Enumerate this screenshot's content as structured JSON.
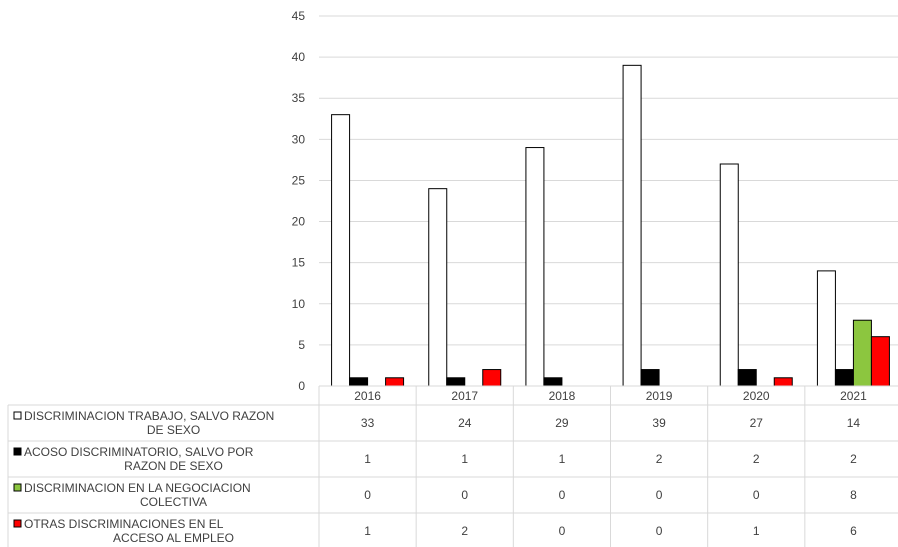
{
  "chart_data": {
    "type": "bar",
    "categories": [
      "2016",
      "2017",
      "2018",
      "2019",
      "2020",
      "2021"
    ],
    "series": [
      {
        "name": "DISCRIMINACION TRABAJO, SALVO RAZON DE SEXO",
        "label_lines": [
          "DISCRIMINACION TRABAJO, SALVO RAZON",
          "DE SEXO"
        ],
        "color": "#ffffff",
        "stroke": "#000000",
        "values": [
          33,
          24,
          29,
          39,
          27,
          14
        ]
      },
      {
        "name": "ACOSO DISCRIMINATORIO, SALVO POR RAZON DE SEXO",
        "label_lines": [
          "ACOSO DISCRIMINATORIO, SALVO POR",
          "RAZON DE SEXO"
        ],
        "color": "#000000",
        "stroke": "#000000",
        "values": [
          1,
          1,
          1,
          2,
          2,
          2
        ]
      },
      {
        "name": "DISCRIMINACION EN LA NEGOCIACION COLECTIVA",
        "label_lines": [
          "DISCRIMINACION EN LA NEGOCIACION",
          "COLECTIVA"
        ],
        "color": "#8cc63f",
        "stroke": "#000000",
        "values": [
          0,
          0,
          0,
          0,
          0,
          8
        ]
      },
      {
        "name": "OTRAS DISCRIMINACIONES EN EL ACCESO AL EMPLEO",
        "label_lines": [
          "OTRAS DISCRIMINACIONES EN EL",
          "ACCESO AL EMPLEO"
        ],
        "color": "#ff0000",
        "stroke": "#000000",
        "values": [
          1,
          2,
          0,
          0,
          1,
          6
        ]
      }
    ],
    "yticks": [
      "0",
      "5",
      "10",
      "15",
      "20",
      "25",
      "30",
      "35",
      "40",
      "45"
    ],
    "ylim": [
      0,
      45
    ],
    "grid": true,
    "legend": "data-table"
  }
}
